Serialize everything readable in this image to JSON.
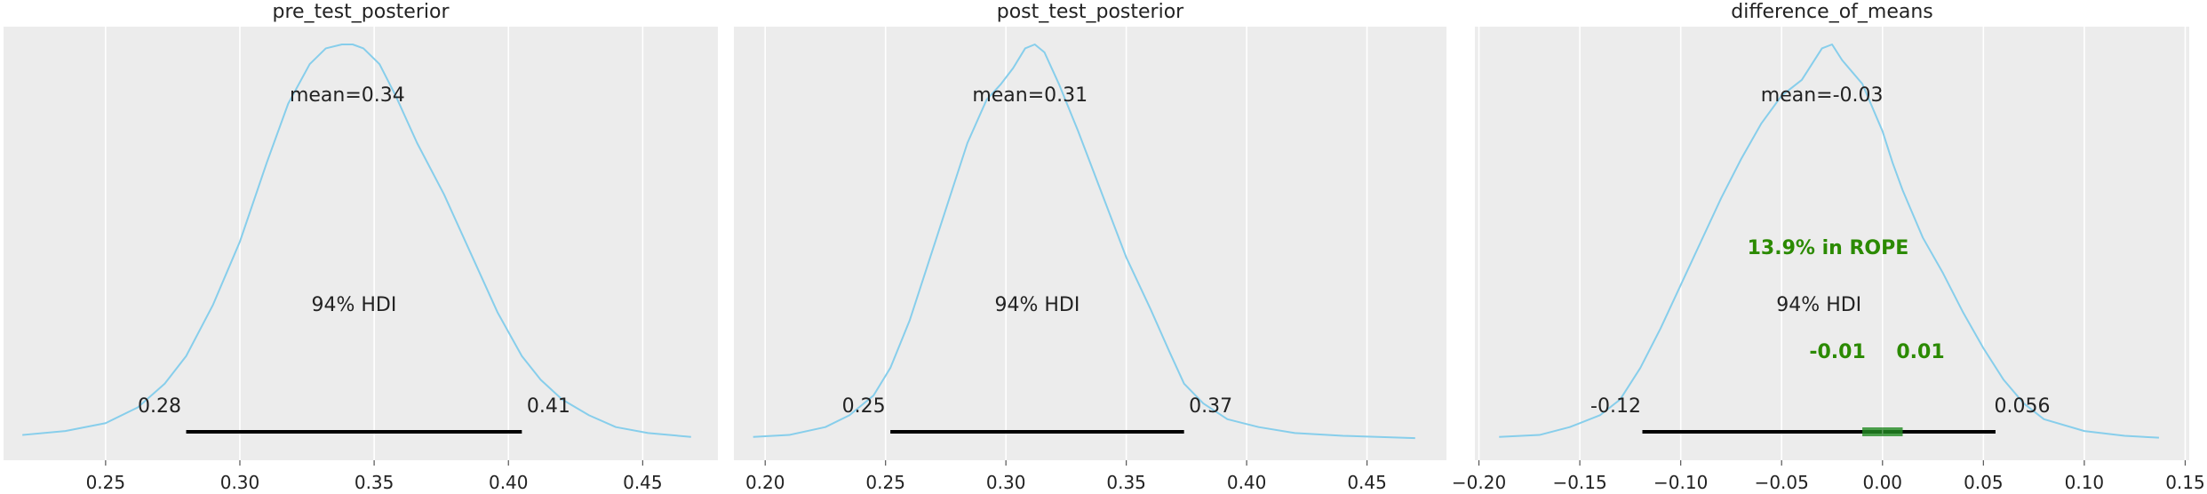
{
  "colors": {
    "background": "#ffffff",
    "panel": "#ececec",
    "grid": "#ffffff",
    "density_line": "#87ceeb",
    "hdi_bar": "#000000",
    "rope": "#228b22",
    "rope_text": "#2b8a00",
    "text": "#222222"
  },
  "chart_data": [
    {
      "type": "line",
      "title": "pre_test_posterior",
      "x_ticks": [
        0.25,
        0.3,
        0.35,
        0.4,
        0.45
      ],
      "x_tick_labels": [
        "0.25",
        "0.30",
        "0.35",
        "0.40",
        "0.45"
      ],
      "xlim": [
        0.212,
        0.478
      ],
      "grid": true,
      "series": [
        {
          "kind": "density",
          "x": [
            0.219,
            0.235,
            0.25,
            0.262,
            0.272,
            0.28,
            0.29,
            0.3,
            0.31,
            0.318,
            0.326,
            0.332,
            0.338,
            0.342,
            0.346,
            0.352,
            0.358,
            0.366,
            0.376,
            0.386,
            0.396,
            0.405,
            0.412,
            0.42,
            0.43,
            0.44,
            0.452,
            0.468
          ],
          "y": [
            0.01,
            0.02,
            0.04,
            0.08,
            0.14,
            0.21,
            0.34,
            0.5,
            0.7,
            0.85,
            0.95,
            0.99,
            1.0,
            1.0,
            0.99,
            0.95,
            0.87,
            0.75,
            0.62,
            0.47,
            0.32,
            0.21,
            0.15,
            0.1,
            0.06,
            0.03,
            0.015,
            0.005
          ]
        }
      ],
      "mean_label": "mean=0.34",
      "hdi": {
        "label": "94% HDI",
        "low": 0.28,
        "high": 0.405,
        "low_label": "0.28",
        "high_label": "0.41"
      }
    },
    {
      "type": "line",
      "title": "post_test_posterior",
      "x_ticks": [
        0.2,
        0.25,
        0.3,
        0.35,
        0.4,
        0.45
      ],
      "x_tick_labels": [
        "0.20",
        "0.25",
        "0.30",
        "0.35",
        "0.40",
        "0.45"
      ],
      "xlim": [
        0.187,
        0.483
      ],
      "grid": true,
      "series": [
        {
          "kind": "density",
          "x": [
            0.195,
            0.21,
            0.225,
            0.235,
            0.245,
            0.252,
            0.26,
            0.268,
            0.276,
            0.284,
            0.292,
            0.298,
            0.303,
            0.308,
            0.312,
            0.316,
            0.322,
            0.33,
            0.34,
            0.35,
            0.36,
            0.368,
            0.374,
            0.382,
            0.392,
            0.405,
            0.42,
            0.44,
            0.47
          ],
          "y": [
            0.005,
            0.01,
            0.03,
            0.06,
            0.11,
            0.18,
            0.3,
            0.45,
            0.6,
            0.75,
            0.86,
            0.9,
            0.94,
            0.99,
            1.0,
            0.98,
            0.9,
            0.78,
            0.62,
            0.46,
            0.33,
            0.22,
            0.14,
            0.09,
            0.05,
            0.03,
            0.015,
            0.008,
            0.002
          ]
        }
      ],
      "mean_label": "mean=0.31",
      "hdi": {
        "label": "94% HDI",
        "low": 0.252,
        "high": 0.374,
        "low_label": "0.25",
        "high_label": "0.37"
      }
    },
    {
      "type": "line",
      "title": "difference_of_means",
      "x_ticks": [
        -0.2,
        -0.15,
        -0.1,
        -0.05,
        0.0,
        0.05,
        0.1,
        0.15
      ],
      "x_tick_labels": [
        "−0.20",
        "−0.15",
        "−0.10",
        "−0.05",
        "0.00",
        "0.05",
        "0.10",
        "0.15"
      ],
      "xlim": [
        -0.202,
        0.152
      ],
      "grid": true,
      "series": [
        {
          "kind": "density",
          "x": [
            -0.19,
            -0.17,
            -0.155,
            -0.14,
            -0.13,
            -0.12,
            -0.11,
            -0.1,
            -0.09,
            -0.08,
            -0.07,
            -0.06,
            -0.05,
            -0.045,
            -0.04,
            -0.035,
            -0.03,
            -0.025,
            -0.02,
            -0.015,
            -0.01,
            -0.005,
            0.0,
            0.005,
            0.01,
            0.02,
            0.03,
            0.04,
            0.05,
            0.06,
            0.07,
            0.08,
            0.1,
            0.12,
            0.137
          ],
          "y": [
            0.005,
            0.01,
            0.03,
            0.06,
            0.1,
            0.18,
            0.28,
            0.39,
            0.5,
            0.61,
            0.71,
            0.8,
            0.87,
            0.89,
            0.91,
            0.95,
            0.99,
            1.0,
            0.96,
            0.93,
            0.9,
            0.84,
            0.78,
            0.7,
            0.63,
            0.51,
            0.42,
            0.32,
            0.23,
            0.15,
            0.09,
            0.05,
            0.02,
            0.008,
            0.003
          ]
        }
      ],
      "mean_label": "mean=-0.03",
      "hdi": {
        "label": "94% HDI",
        "low": -0.119,
        "high": 0.056,
        "low_label": "-0.12",
        "high_label": "0.056"
      },
      "rope": {
        "low": -0.01,
        "high": 0.01,
        "low_label": "-0.01",
        "high_label": "0.01",
        "pct_label": "13.9% in ROPE"
      }
    }
  ]
}
